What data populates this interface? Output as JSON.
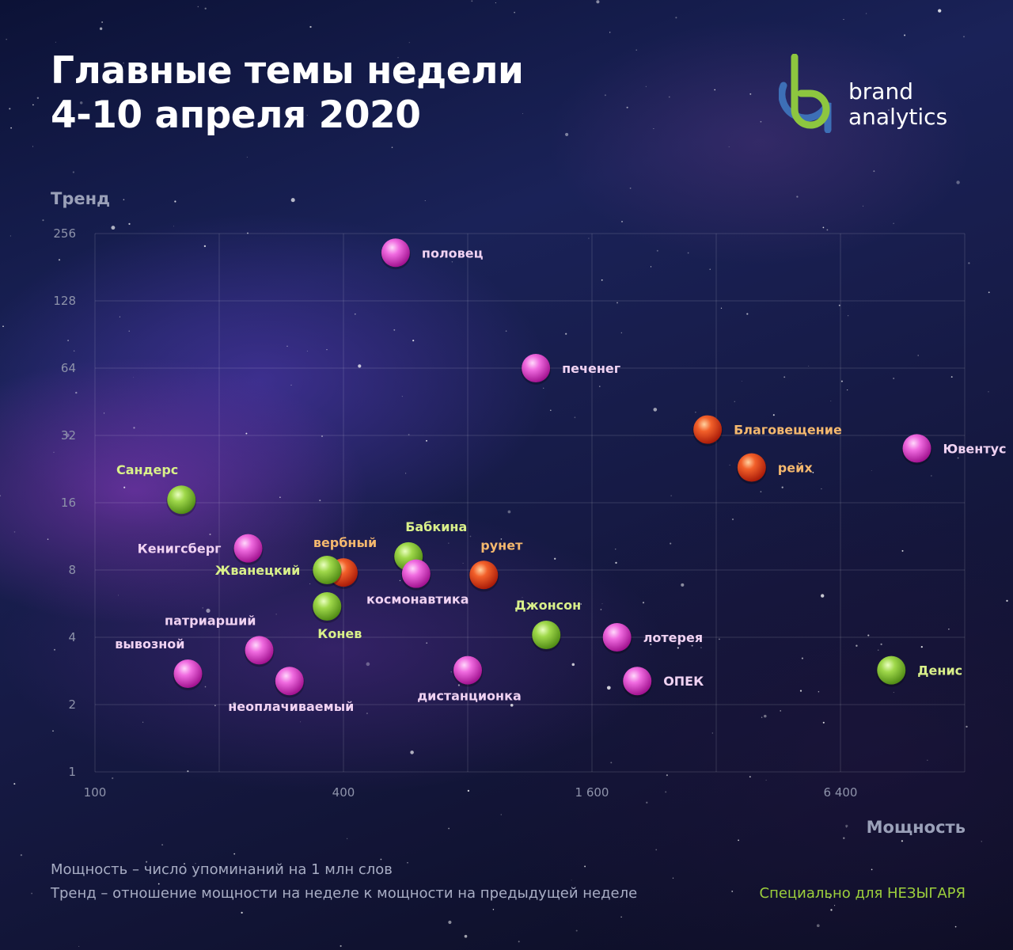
{
  "title": {
    "line1": "Главные темы недели",
    "line2": "4-10 апреля 2020"
  },
  "logo": {
    "icon": "brand-analytics-logo-icon",
    "line1": "brand",
    "line2": "analytics",
    "colors": {
      "green": "#8dc63f",
      "blue": "#3d6fb6"
    }
  },
  "colors": {
    "magenta": "#e040c8",
    "red": "#e8401c",
    "green": "#8cc83a",
    "label_magenta": "#f0d2f2",
    "label_orange": "#f4b86e",
    "label_green": "#d9f08a"
  },
  "chart_data": {
    "type": "scatter",
    "xlabel": "Мощность",
    "ylabel": "Тренд",
    "x_scale": "log2",
    "y_scale": "log2",
    "xlim": [
      100,
      12800
    ],
    "ylim": [
      1,
      256
    ],
    "x_ticks": [
      {
        "value": 100,
        "label": "100"
      },
      {
        "value": 400,
        "label": "400"
      },
      {
        "value": 1600,
        "label": "1 600"
      },
      {
        "value": 6400,
        "label": "6 400"
      }
    ],
    "y_ticks": [
      {
        "value": 1,
        "label": "1"
      },
      {
        "value": 2,
        "label": "2"
      },
      {
        "value": 4,
        "label": "4"
      },
      {
        "value": 8,
        "label": "8"
      },
      {
        "value": 16,
        "label": "16"
      },
      {
        "value": 32,
        "label": "32"
      },
      {
        "value": 64,
        "label": "64"
      },
      {
        "value": 128,
        "label": "128"
      },
      {
        "value": 256,
        "label": "256"
      }
    ],
    "grid": true,
    "points": [
      {
        "label": "половец",
        "x": 535,
        "y": 210,
        "color": "magenta",
        "label_pos": "right"
      },
      {
        "label": "печенег",
        "x": 1170,
        "y": 64,
        "color": "magenta",
        "label_pos": "right"
      },
      {
        "label": "Благовещение",
        "x": 3050,
        "y": 34,
        "color": "red",
        "label_pos": "right"
      },
      {
        "label": "Ювентус",
        "x": 9800,
        "y": 28,
        "color": "magenta",
        "label_pos": "right"
      },
      {
        "label": "рейх",
        "x": 3900,
        "y": 23,
        "color": "red",
        "label_pos": "right"
      },
      {
        "label": "Сандерс",
        "x": 162,
        "y": 16.5,
        "color": "green",
        "label_pos": "above-left"
      },
      {
        "label": "Кенигсберг",
        "x": 235,
        "y": 10,
        "color": "magenta",
        "label_pos": "left"
      },
      {
        "label": "вербный",
        "x": 400,
        "y": 7.8,
        "color": "red",
        "label_pos": "above"
      },
      {
        "label": "Жванецкий",
        "x": 365,
        "y": 8,
        "color": "green",
        "label_pos": "left"
      },
      {
        "label": "Бабкина",
        "x": 575,
        "y": 9.2,
        "color": "green",
        "label_pos": "above-right"
      },
      {
        "label": "космонавтика",
        "x": 600,
        "y": 7.7,
        "color": "magenta",
        "label_pos": "below"
      },
      {
        "label": "рунет",
        "x": 875,
        "y": 7.6,
        "color": "red",
        "label_pos": "above-right"
      },
      {
        "label": "Конев",
        "x": 365,
        "y": 5.5,
        "color": "green",
        "label_pos": "below-right"
      },
      {
        "label": "Джонсон",
        "x": 1240,
        "y": 4.1,
        "color": "green",
        "label_pos": "above"
      },
      {
        "label": "лотерея",
        "x": 1840,
        "y": 4.0,
        "color": "magenta",
        "label_pos": "right"
      },
      {
        "label": "патриарший",
        "x": 250,
        "y": 3.5,
        "color": "magenta",
        "label_pos": "above-left"
      },
      {
        "label": "вывозной",
        "x": 168,
        "y": 2.75,
        "color": "magenta",
        "label_pos": "above-left"
      },
      {
        "label": "неоплачиваемый",
        "x": 296,
        "y": 2.55,
        "color": "magenta",
        "label_pos": "below"
      },
      {
        "label": "дистанционка",
        "x": 800,
        "y": 2.85,
        "color": "magenta",
        "label_pos": "below"
      },
      {
        "label": "ОПЕК",
        "x": 2060,
        "y": 2.55,
        "color": "magenta",
        "label_pos": "right"
      },
      {
        "label": "Денис",
        "x": 8500,
        "y": 2.85,
        "color": "green",
        "label_pos": "right"
      }
    ]
  },
  "notes": {
    "line1": "Мощность – число упоминаний на 1 млн слов",
    "line2": "Тренд – отношение мощности на неделе к мощности на предыдущей неделе"
  },
  "credit": "Специально для НЕЗЫГАРЯ"
}
